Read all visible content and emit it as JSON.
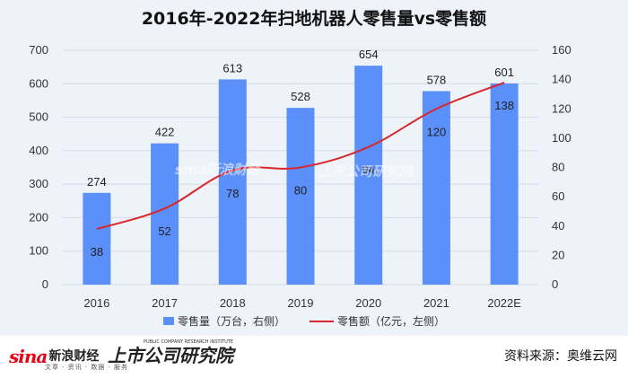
{
  "title": "2016年-2022年扫地机器人零售量vs零售额",
  "chart_data": {
    "type": "bar",
    "categories": [
      "2016",
      "2017",
      "2018",
      "2019",
      "2020",
      "2021",
      "2022E"
    ],
    "series": [
      {
        "name": "零售量（万台，右侧）",
        "type": "bar",
        "axis": "left",
        "color": "#5b8ff9",
        "values": [
          274,
          422,
          613,
          528,
          654,
          578,
          601
        ]
      },
      {
        "name": "零售额（亿元，左侧）",
        "type": "line",
        "axis": "right",
        "color": "#d9262c",
        "values": [
          38,
          52,
          78,
          80,
          94,
          120,
          138
        ]
      }
    ],
    "y_left": {
      "min": 0,
      "max": 700,
      "step": 100,
      "ticks": [
        "0",
        "100",
        "200",
        "300",
        "400",
        "500",
        "600",
        "700"
      ]
    },
    "y_right": {
      "min": 0,
      "max": 160,
      "step": 20,
      "ticks": [
        "0",
        "20",
        "40",
        "60",
        "80",
        "100",
        "120",
        "140",
        "160"
      ]
    },
    "grid": true,
    "legend_position": "bottom"
  },
  "footer": {
    "sina_word": "sina",
    "sina_cn": "新浪财经",
    "sina_sub": "文章 · 资讯 · 数据 · 服务",
    "research_mark": "上市公司研究院",
    "research_small": "PUBLIC COMPANY RESEARCH INSTITUTE",
    "source": "资料来源：奥维云网"
  },
  "watermark": {
    "sina": "sina新浪财经",
    "research": "上市公司研究院"
  }
}
